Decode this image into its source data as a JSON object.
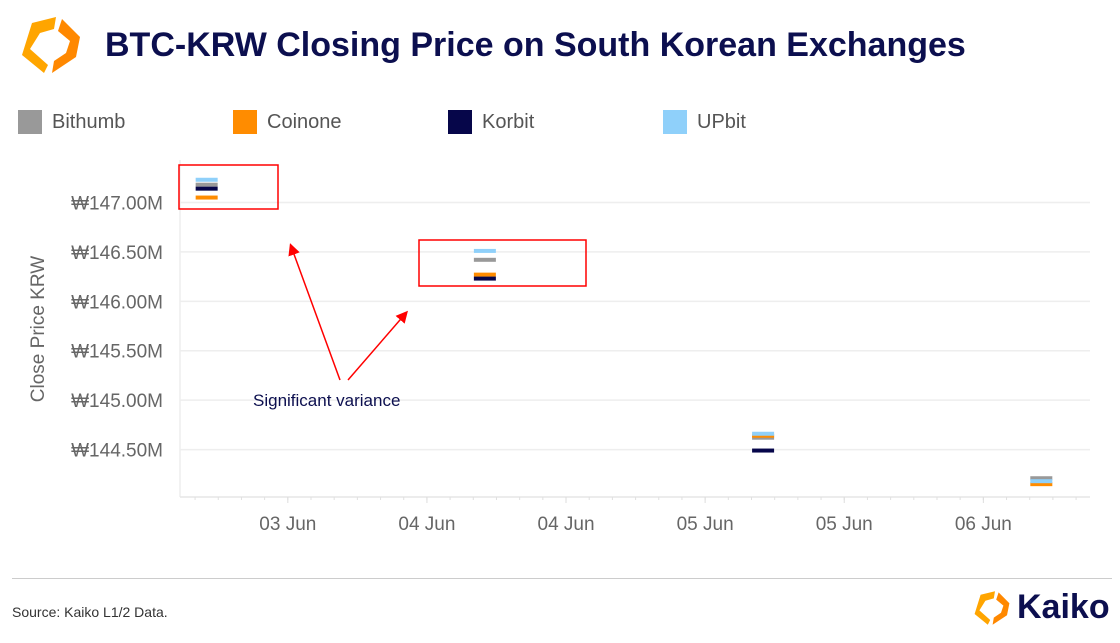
{
  "header": {
    "title": "BTC-KRW Closing Price on South Korean Exchanges"
  },
  "footer": {
    "source": "Source: Kaiko L1/2 Data.",
    "brand": "Kaiko"
  },
  "colors": {
    "Bithumb": "#999999",
    "Coinone": "#ff8c00",
    "Korbit": "#06064a",
    "UPbit": "#8fd0fa",
    "annotation": "#ff0000"
  },
  "chart_data": {
    "type": "scatter",
    "title": "BTC-KRW Closing Price on South Korean Exchanges",
    "xlabel": "",
    "ylabel": "Close Price KRW",
    "x_unit": "hours since 03 Jun 00:00",
    "xlim": [
      -9.3,
      69.2
    ],
    "ylim": [
      144.02,
      147.43
    ],
    "x_ticks": [
      0,
      12,
      24,
      36,
      48,
      60
    ],
    "x_tick_labels": [
      "03 Jun",
      "04 Jun",
      "04 Jun",
      "05 Jun",
      "05 Jun",
      "06 Jun"
    ],
    "y_ticks": [
      144.5,
      145.0,
      145.5,
      146.0,
      146.5,
      147.0
    ],
    "y_tick_labels": [
      "₩144.50M",
      "₩145.00M",
      "₩145.50M",
      "₩146.00M",
      "₩146.50M",
      "₩147.00M"
    ],
    "grid": true,
    "legend_position": "top",
    "x": [
      -7,
      17,
      41,
      65
    ],
    "series": [
      {
        "name": "Bithumb",
        "values": [
          147.18,
          146.42,
          144.62,
          144.21
        ]
      },
      {
        "name": "Coinone",
        "values": [
          147.05,
          146.27,
          144.64,
          144.15
        ]
      },
      {
        "name": "Korbit",
        "values": [
          147.14,
          146.23,
          144.49,
          null
        ]
      },
      {
        "name": "UPbit",
        "values": [
          147.23,
          146.51,
          144.66,
          144.18
        ]
      }
    ],
    "annotation": {
      "text": "Significant variance",
      "highlighted_points": [
        0,
        1
      ]
    }
  }
}
